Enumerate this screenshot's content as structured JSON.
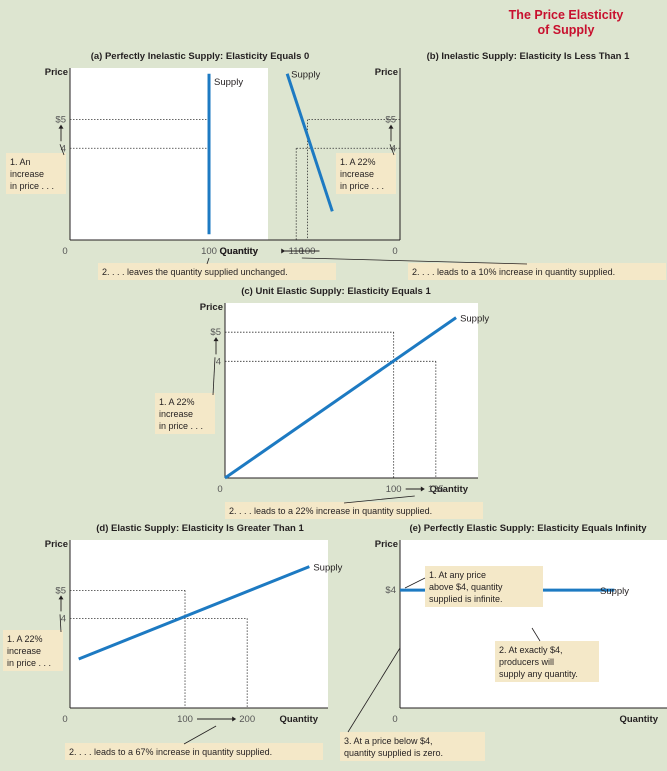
{
  "figure_title": [
    "The Price Elasticity",
    "of Supply"
  ],
  "colors": {
    "background": "#dde5d0",
    "plot_area": "#ffffff",
    "supply_line": "#1d7ac2",
    "note_box": "#f4e8c8",
    "title": "#c8102e"
  },
  "chart_data": [
    {
      "id": "a",
      "type": "line",
      "title": "(a) Perfectly Inelastic Supply: Elasticity Equals 0",
      "xlabel": "Quantity",
      "ylabel": "Price",
      "origin_label": "0",
      "x_ticks": [
        "100"
      ],
      "y_ticks": [
        "$5",
        "4"
      ],
      "series": [
        {
          "name": "Supply",
          "points": [
            [
              100,
              1.0
            ],
            [
              100,
              6.6
            ]
          ]
        }
      ],
      "guides": {
        "prices": [
          5,
          4
        ],
        "quantities": []
      },
      "notes": {
        "price_change": [
          "1. An",
          "increase",
          "in price . . ."
        ],
        "quantity_change": [
          "2. . . . leaves the quantity supplied unchanged."
        ]
      }
    },
    {
      "id": "b",
      "type": "line",
      "title": "(b) Inelastic Supply: Elasticity Is Less Than 1",
      "xlabel": "Quantity",
      "ylabel": "Price",
      "origin_label": "0",
      "x_ticks": [
        "100",
        "110"
      ],
      "y_ticks": [
        "$5",
        "4"
      ],
      "series": [
        {
          "name": "Supply",
          "points": [
            [
              78,
              1.8
            ],
            [
              118,
              6.6
            ]
          ]
        }
      ],
      "guides": {
        "prices": [
          5,
          4
        ],
        "quantities": [
          100,
          110
        ]
      },
      "notes": {
        "price_change": [
          "1. A 22%",
          "increase",
          "in price . . ."
        ],
        "quantity_change": [
          "2. . . . leads to a 10% increase in quantity supplied."
        ]
      }
    },
    {
      "id": "c",
      "type": "line",
      "title": "(c) Unit Elastic Supply: Elasticity Equals 1",
      "xlabel": "Quantity",
      "ylabel": "Price",
      "origin_label": "0",
      "x_ticks": [
        "100",
        "125"
      ],
      "y_ticks": [
        "$5",
        "4"
      ],
      "series": [
        {
          "name": "Supply",
          "points": [
            [
              0,
              0
            ],
            [
              137,
              5.5
            ]
          ]
        }
      ],
      "guides": {
        "prices": [
          5,
          4
        ],
        "quantities": [
          100,
          125
        ]
      },
      "notes": {
        "price_change": [
          "1. A 22%",
          "increase",
          "in price . . ."
        ],
        "quantity_change": [
          "2. . . . leads to a 22% increase in quantity supplied."
        ]
      }
    },
    {
      "id": "d",
      "type": "line",
      "title": "(d) Elastic Supply: Elasticity Is Greater Than 1",
      "xlabel": "Quantity",
      "ylabel": "Price",
      "origin_label": "0",
      "x_ticks": [
        "100",
        "200"
      ],
      "y_ticks": [
        "$5",
        "4"
      ],
      "series": [
        {
          "name": "Supply",
          "points": [
            [
              -71,
              2.55
            ],
            [
              300,
              5.85
            ]
          ]
        }
      ],
      "guides": {
        "prices": [
          5,
          4
        ],
        "quantities": [
          100,
          200
        ]
      },
      "notes": {
        "price_change": [
          "1. A 22%",
          "increase",
          "in price . . ."
        ],
        "quantity_change": [
          "2. . . . leads to a 67% increase in quantity supplied."
        ]
      }
    },
    {
      "id": "e",
      "type": "line",
      "title": "(e) Perfectly Elastic Supply: Elasticity Equals Infinity",
      "xlabel": "Quantity",
      "ylabel": "Price",
      "origin_label": "0",
      "x_ticks": [],
      "y_ticks": [
        "$4"
      ],
      "series": [
        {
          "name": "Supply",
          "points": [
            [
              0,
              4
            ],
            [
              100,
              4
            ]
          ]
        }
      ],
      "guides": {
        "prices": [],
        "quantities": []
      },
      "notes": {
        "above": [
          "1. At any price",
          "above $4, quantity",
          "supplied is infinite."
        ],
        "at": [
          "2. At exactly $4,",
          "producers will",
          "supply any quantity."
        ],
        "below": [
          "3. At a price below $4,",
          "quantity supplied is zero."
        ]
      }
    }
  ]
}
